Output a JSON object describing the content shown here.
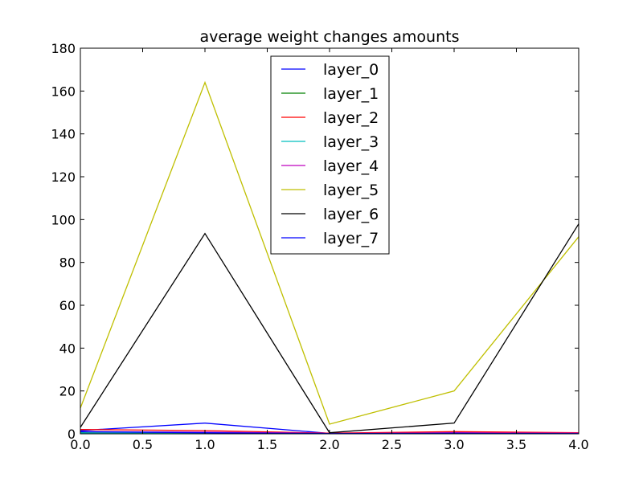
{
  "chart_data": {
    "type": "line",
    "title": "average weight changes amounts",
    "xlabel": "",
    "ylabel": "",
    "xlim": [
      0,
      4
    ],
    "ylim": [
      0,
      180
    ],
    "xticks": [
      0,
      0.5,
      1,
      1.5,
      2,
      2.5,
      3,
      3.5,
      4
    ],
    "xtick_labels": [
      "0.0",
      "0.5",
      "1.0",
      "1.5",
      "2.0",
      "2.5",
      "3.0",
      "3.5",
      "4.0"
    ],
    "yticks": [
      0,
      20,
      40,
      60,
      80,
      100,
      120,
      140,
      160,
      180
    ],
    "ytick_labels": [
      "0",
      "20",
      "40",
      "60",
      "80",
      "100",
      "120",
      "140",
      "160",
      "180"
    ],
    "grid": false,
    "legend_position": "top-center",
    "x": [
      0,
      1,
      2,
      3,
      4
    ],
    "series": [
      {
        "name": "layer_0",
        "color": "#0000ff",
        "values": [
          1.5,
          5,
          0.2,
          0.5,
          0.3
        ]
      },
      {
        "name": "layer_1",
        "color": "#008000",
        "values": [
          0.5,
          0.3,
          0.1,
          0.2,
          0.1
        ]
      },
      {
        "name": "layer_2",
        "color": "#ff0000",
        "values": [
          2,
          1.5,
          0.3,
          1,
          0.5
        ]
      },
      {
        "name": "layer_3",
        "color": "#00bfbf",
        "values": [
          0.4,
          0.2,
          0.1,
          0.2,
          0.1
        ]
      },
      {
        "name": "layer_4",
        "color": "#bf00bf",
        "values": [
          1,
          0.8,
          0.2,
          0.4,
          0.3
        ]
      },
      {
        "name": "layer_5",
        "color": "#bfbf00",
        "values": [
          12,
          164,
          4.5,
          20,
          92
        ]
      },
      {
        "name": "layer_6",
        "color": "#000000",
        "values": [
          3,
          93.5,
          0.5,
          5,
          98
        ]
      },
      {
        "name": "layer_7",
        "color": "#0000ff",
        "values": [
          1,
          0.5,
          0.1,
          0.2,
          0.1
        ]
      }
    ]
  }
}
